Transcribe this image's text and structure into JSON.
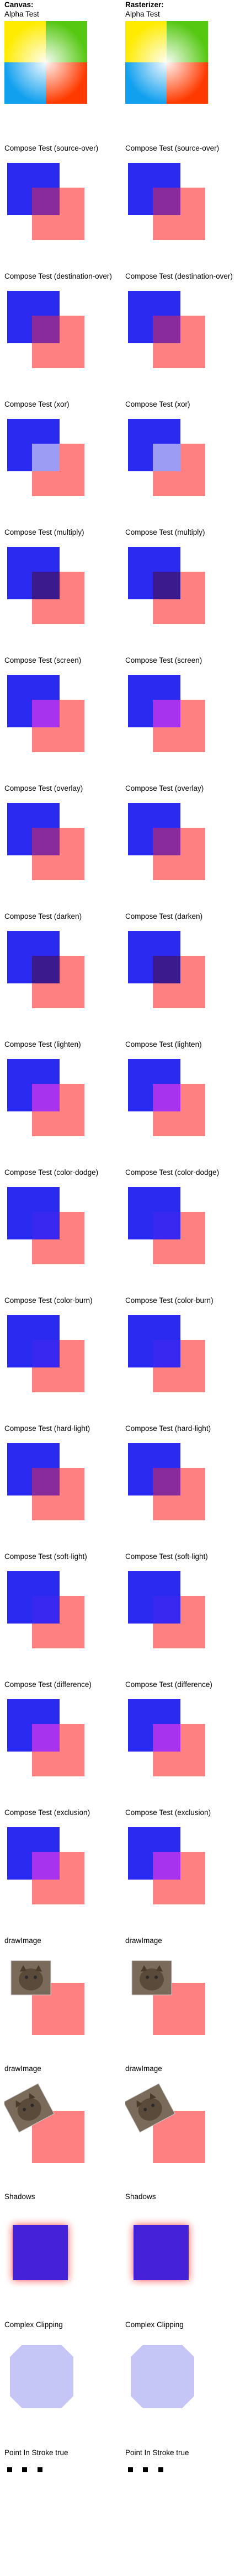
{
  "columns": [
    {
      "id": "canvas",
      "header_bold": "Canvas:",
      "header_sub": "Alpha Test"
    },
    {
      "id": "raster",
      "header_bold": "Rasterizer:",
      "header_sub": "Alpha Test"
    }
  ],
  "alpha_test": {
    "colors": {
      "top_left": "#ffeb00",
      "top_right": "#55c811",
      "bottom_left": "#11a0ee",
      "bottom_right": "#ff3a00"
    }
  },
  "compose": {
    "blue": "#2a2af0",
    "pink": "#ff8080",
    "tests": [
      {
        "label": "Compose Test (source-over)",
        "op": "source-over"
      },
      {
        "label": "Compose Test (destination-over)",
        "op": "destination-over"
      },
      {
        "label": "Compose Test (xor)",
        "op": "xor"
      },
      {
        "label": "Compose Test (multiply)",
        "op": "multiply"
      },
      {
        "label": "Compose Test (screen)",
        "op": "screen"
      },
      {
        "label": "Compose Test (overlay)",
        "op": "overlay"
      },
      {
        "label": "Compose Test (darken)",
        "op": "darken"
      },
      {
        "label": "Compose Test (lighten)",
        "op": "lighten"
      },
      {
        "label": "Compose Test (color-dodge)",
        "op": "color-dodge"
      },
      {
        "label": "Compose Test (color-burn)",
        "op": "color-burn"
      },
      {
        "label": "Compose Test (hard-light)",
        "op": "hard-light"
      },
      {
        "label": "Compose Test (soft-light)",
        "op": "soft-light"
      },
      {
        "label": "Compose Test (difference)",
        "op": "difference"
      },
      {
        "label": "Compose Test (exclusion)",
        "op": "exclusion"
      }
    ]
  },
  "draw_image": [
    {
      "label": "drawImage",
      "variant": "straight"
    },
    {
      "label": "drawImage",
      "variant": "rotated"
    }
  ],
  "shadows": {
    "label": "Shadows",
    "color": "#4422d8"
  },
  "clipping": {
    "label": "Complex Clipping",
    "color": "#c6c6f6"
  },
  "point_in_stroke": {
    "label": "Point In Stroke true"
  }
}
